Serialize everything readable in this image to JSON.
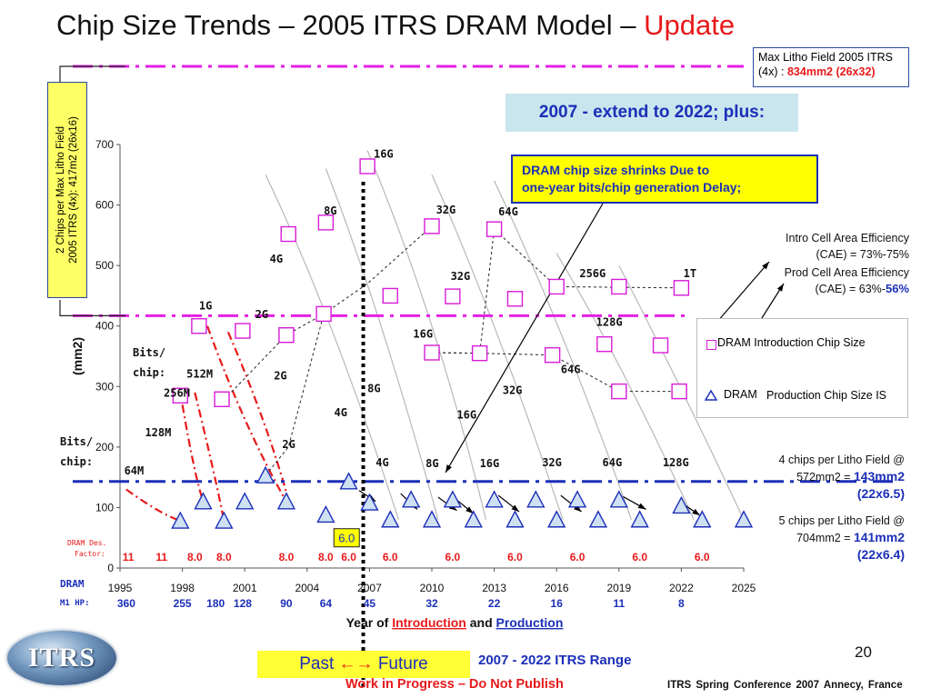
{
  "slide": {
    "title_prefix": "Chip Size Trends – 2005 ITRS DRAM Model –",
    "title_highlight": "Update",
    "page_number": "20",
    "max_litho_box": {
      "line1": "Max Litho Field 2005 ITRS",
      "line2_prefix": "(4x) :",
      "line2_value": "834mm2 (26x32)"
    },
    "extend_box": "2007 - extend to 2022; plus:",
    "shrink_box": {
      "line1": "DRAM chip size shrinks Due to",
      "line2": "one-year bits/chip  generation  Delay;"
    },
    "vertical_box": {
      "line1": "2 Chips per  Max Litho Field",
      "line2": "2005 ITRS (4x):  417m2 (26x16)"
    },
    "cae_notes": {
      "intro_line1": "Intro Cell Area Efficiency",
      "intro_line2": "(CAE) = 73%-75%",
      "prod_line1": "Prod Cell Area Efficiency",
      "prod_line2_prefix": "(CAE) = 63%-",
      "prod_line2_highlight": "56%"
    },
    "litho_notes": [
      {
        "line1": "4 chips per Litho Field @",
        "line2_prefix": "572mm2 =",
        "line2_value": "143mm2",
        "line3": "(22x6.5)"
      },
      {
        "line1": "5 chips per Litho Field @",
        "line2_prefix": "704mm2 =",
        "line2_value": "141mm2",
        "line3": "(22x6.4)"
      }
    ],
    "legend": {
      "intro": "DRAM Introduction Chip Size",
      "prod_a": "DRAM",
      "prod_b": "Production Chip Size IS"
    },
    "past_label": "Past",
    "future_label": "Future",
    "arrows_glyph": "←→",
    "range_label": "2007 - 2022 ITRS Range",
    "wip_label": "Work in Progress – Do Not Publish",
    "conference": "ITRS Spring Conference 2007    Annecy, France",
    "logo_text": "ITRS"
  },
  "chart_data": {
    "type": "scatter",
    "xlabel_prefix": "Year of",
    "xlabel_intro": "Introduction",
    "xlabel_and": "and",
    "xlabel_prod": "Production",
    "ylabel": "(mm2)",
    "xlim": [
      1995,
      2025
    ],
    "ylim": [
      0,
      700
    ],
    "x_ticks": [
      1995,
      1998,
      2001,
      2004,
      2007,
      2010,
      2013,
      2016,
      2019,
      2022,
      2025
    ],
    "y_ticks": [
      0,
      100,
      200,
      300,
      400,
      500,
      600,
      700
    ],
    "colors": {
      "intro": "#d81bd8",
      "prod": "#1b2fb8",
      "blue_label": "#1b2fb8",
      "red": "#e8191a",
      "magenta_line": "#e51ee5",
      "blue_line": "#1b2fb8"
    },
    "reference_lines": [
      {
        "name": "2 chips per max litho field",
        "y": 417,
        "color": "#e51ee5"
      },
      {
        "name": "max litho field",
        "y": 834,
        "color": "#e51ee5"
      },
      {
        "name": "litho field limit",
        "y": 143,
        "color": "#1b2fb8"
      }
    ],
    "boundary_year": 2006.7,
    "series": [
      {
        "name": "DRAM Introduction Chip Size",
        "marker": "square",
        "points": [
          {
            "x": 2004.8,
            "y": 420
          },
          {
            "x": 2003.1,
            "y": 552
          },
          {
            "x": 2004.9,
            "y": 571
          },
          {
            "x": 2006.9,
            "y": 664
          },
          {
            "x": 1998.8,
            "y": 400
          },
          {
            "x": 2000.9,
            "y": 392
          },
          {
            "x": 2003.0,
            "y": 385
          },
          {
            "x": 2008.0,
            "y": 450
          },
          {
            "x": 2010.0,
            "y": 565
          },
          {
            "x": 2013.0,
            "y": 560
          },
          {
            "x": 2011.0,
            "y": 449
          },
          {
            "x": 2014.0,
            "y": 445
          },
          {
            "x": 2016.0,
            "y": 465
          },
          {
            "x": 2019.0,
            "y": 465
          },
          {
            "x": 2022.0,
            "y": 463
          },
          {
            "x": 1997.9,
            "y": 285
          },
          {
            "x": 1999.9,
            "y": 279
          },
          {
            "x": 2010.0,
            "y": 356
          },
          {
            "x": 2012.3,
            "y": 355
          },
          {
            "x": 2015.8,
            "y": 352
          },
          {
            "x": 2018.3,
            "y": 370
          },
          {
            "x": 2021.0,
            "y": 368
          },
          {
            "x": 2019.0,
            "y": 292
          },
          {
            "x": 2021.9,
            "y": 292
          }
        ]
      },
      {
        "name": "DRAM Production Chip Size IS",
        "marker": "triangle",
        "points": [
          {
            "x": 1997.9,
            "y": 78
          },
          {
            "x": 1999.0,
            "y": 110
          },
          {
            "x": 2000.0,
            "y": 78
          },
          {
            "x": 2001.0,
            "y": 110
          },
          {
            "x": 2002.0,
            "y": 153
          },
          {
            "x": 2003.0,
            "y": 110
          },
          {
            "x": 2006.0,
            "y": 143
          },
          {
            "x": 2007.0,
            "y": 108
          },
          {
            "x": 2008.0,
            "y": 80
          },
          {
            "x": 2009.0,
            "y": 113
          },
          {
            "x": 2010.0,
            "y": 80
          },
          {
            "x": 2011.0,
            "y": 113
          },
          {
            "x": 2012.0,
            "y": 80
          },
          {
            "x": 2013.0,
            "y": 113
          },
          {
            "x": 2014.0,
            "y": 80
          },
          {
            "x": 2015.0,
            "y": 113
          },
          {
            "x": 2016.0,
            "y": 80
          },
          {
            "x": 2017.0,
            "y": 113
          },
          {
            "x": 2018.0,
            "y": 80
          },
          {
            "x": 2019.0,
            "y": 113
          },
          {
            "x": 2020.0,
            "y": 80
          },
          {
            "x": 2022.0,
            "y": 103
          },
          {
            "x": 2023.0,
            "y": 80
          },
          {
            "x": 2025.0,
            "y": 80
          },
          {
            "x": 2004.9,
            "y": 88
          }
        ]
      }
    ],
    "bits_labels": [
      {
        "text": "64M",
        "x": 1995.2,
        "y": 155,
        "color": "red"
      },
      {
        "text": "128M",
        "x": 1996.2,
        "y": 218,
        "color": "red"
      },
      {
        "text": "256M",
        "x": 1997.1,
        "y": 283,
        "color": "red"
      },
      {
        "text": "512M",
        "x": 1998.2,
        "y": 315,
        "color": "red"
      },
      {
        "text": "1G",
        "x": 1998.8,
        "y": 427,
        "color": "red"
      },
      {
        "text": "2G",
        "x": 2001.5,
        "y": 413,
        "color": "red"
      },
      {
        "text": "2G",
        "x": 2002.8,
        "y": 198,
        "color": "black"
      },
      {
        "text": "2G",
        "x": 2002.4,
        "y": 312,
        "color": "black"
      },
      {
        "text": "4G",
        "x": 2002.2,
        "y": 505,
        "color": "black"
      },
      {
        "text": "8G",
        "x": 2004.8,
        "y": 584,
        "color": "black"
      },
      {
        "text": "16G",
        "x": 2007.2,
        "y": 678,
        "color": "black"
      },
      {
        "text": "32G",
        "x": 2010.2,
        "y": 586,
        "color": "black"
      },
      {
        "text": "64G",
        "x": 2013.2,
        "y": 583,
        "color": "black"
      },
      {
        "text": "32G",
        "x": 2010.9,
        "y": 476,
        "color": "black"
      },
      {
        "text": "256G",
        "x": 2017.1,
        "y": 481,
        "color": "black"
      },
      {
        "text": "1T",
        "x": 2022.1,
        "y": 481,
        "color": "black"
      },
      {
        "text": "128G",
        "x": 2017.9,
        "y": 400,
        "color": "black"
      },
      {
        "text": "16G",
        "x": 2009.1,
        "y": 381,
        "color": "black"
      },
      {
        "text": "64G",
        "x": 2016.2,
        "y": 322,
        "color": "black"
      },
      {
        "text": "8G",
        "x": 2006.9,
        "y": 291,
        "color": "black"
      },
      {
        "text": "32G",
        "x": 2013.4,
        "y": 288,
        "color": "black"
      },
      {
        "text": "4G",
        "x": 2005.3,
        "y": 251,
        "color": "black"
      },
      {
        "text": "16G",
        "x": 2011.2,
        "y": 247,
        "color": "black"
      },
      {
        "text": "4G",
        "x": 2007.3,
        "y": 168,
        "color": "black"
      },
      {
        "text": "8G",
        "x": 2009.7,
        "y": 167,
        "color": "black"
      },
      {
        "text": "16G",
        "x": 2012.3,
        "y": 167,
        "color": "black"
      },
      {
        "text": "32G",
        "x": 2015.3,
        "y": 168,
        "color": "black"
      },
      {
        "text": "64G",
        "x": 2018.2,
        "y": 168,
        "color": "black"
      },
      {
        "text": "128G",
        "x": 2021.1,
        "y": 168,
        "color": "black"
      }
    ],
    "bits_side_labels": {
      "line1": "Bits/",
      "line2": "chip:"
    },
    "bits_side_labels_2": {
      "line1": "Bits/",
      "line2": "chip:"
    },
    "design_factor_label": {
      "line1": "DRAM Des.",
      "line2": "Factor:"
    },
    "design_factors": [
      {
        "x": 1995.4,
        "v": "11"
      },
      {
        "x": 1997.0,
        "v": "11"
      },
      {
        "x": 1998.6,
        "v": "8.0"
      },
      {
        "x": 2000.0,
        "v": "8.0"
      },
      {
        "x": 2003.0,
        "v": "8.0"
      },
      {
        "x": 2004.9,
        "v": "8.0"
      },
      {
        "x": 2006.0,
        "v": "6.0"
      },
      {
        "x": 2008.0,
        "v": "6.0"
      },
      {
        "x": 2011.0,
        "v": "6.0"
      },
      {
        "x": 2014.0,
        "v": "6.0"
      },
      {
        "x": 2017.0,
        "v": "6.0"
      },
      {
        "x": 2020.0,
        "v": "6.0"
      },
      {
        "x": 2023.0,
        "v": "6.0"
      }
    ],
    "highlight_factor": {
      "text": "6.0",
      "x": 2005.9,
      "y": 50
    },
    "dram_row_label": "DRAM",
    "m1hp_label": "M1 HP:",
    "m1hp": [
      {
        "x": 1995.3,
        "v": "360"
      },
      {
        "x": 1998.0,
        "v": "255"
      },
      {
        "x": 1999.6,
        "v": "180"
      },
      {
        "x": 2000.9,
        "v": "128"
      },
      {
        "x": 2003.0,
        "v": "90"
      },
      {
        "x": 2004.9,
        "v": "64"
      },
      {
        "x": 2007.0,
        "v": "45"
      },
      {
        "x": 2010.0,
        "v": "32"
      },
      {
        "x": 2013.0,
        "v": "22"
      },
      {
        "x": 2016.0,
        "v": "16"
      },
      {
        "x": 2019.0,
        "v": "11"
      },
      {
        "x": 2022.0,
        "v": "8"
      }
    ]
  }
}
